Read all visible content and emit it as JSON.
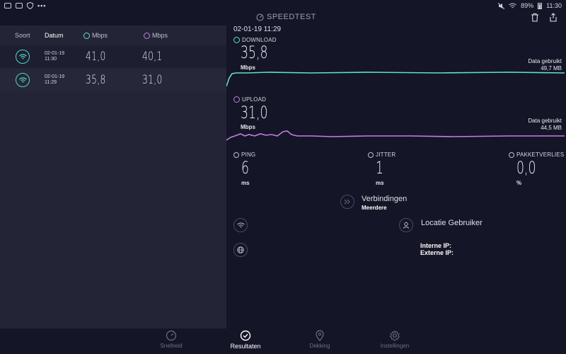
{
  "status_bar": {
    "battery": "89%",
    "time": "11:30"
  },
  "app": {
    "title": "SPEEDTEST"
  },
  "history": {
    "headers": {
      "type": "Soort",
      "date": "Datum",
      "download_unit": "Mbps",
      "upload_unit": "Mbps"
    },
    "rows": [
      {
        "date": "02-01-19",
        "time": "11:30",
        "download": "41,0",
        "upload": "40,1"
      },
      {
        "date": "02-01-19",
        "time": "11:29",
        "download": "35,8",
        "upload": "31,0"
      }
    ]
  },
  "result": {
    "timestamp": "02-01-19 11:29",
    "download": {
      "label": "DOWNLOAD",
      "value": "35,8",
      "unit": "Mbps",
      "used_label": "Data gebruikt",
      "used_value": "49,7 MB",
      "color": "#5ee0c8"
    },
    "upload": {
      "label": "UPLOAD",
      "value": "31,0",
      "unit": "Mbps",
      "used_label": "Data gebruikt",
      "used_value": "44,5 MB",
      "color": "#c27ee0"
    },
    "ping": {
      "label": "PING",
      "value": "6",
      "unit": "ms"
    },
    "jitter": {
      "label": "JITTER",
      "value": "1",
      "unit": "ms"
    },
    "packet_loss": {
      "label": "PAKKETVERLIES",
      "value": "0,0",
      "unit": "%"
    },
    "connections": {
      "label": "Verbindingen",
      "value": "Meerdere"
    },
    "location": {
      "label": "Locatie Gebruiker"
    },
    "internal_ip": {
      "label": "Interne IP:"
    },
    "external_ip": {
      "label": "Externe IP:"
    }
  },
  "nav": {
    "items": [
      {
        "label": "Snelheid",
        "icon": "speedometer-icon"
      },
      {
        "label": "Resultaten",
        "icon": "check-circle-icon"
      },
      {
        "label": "Dekking",
        "icon": "map-pin-icon"
      },
      {
        "label": "Instellingen",
        "icon": "gear-icon"
      }
    ]
  }
}
